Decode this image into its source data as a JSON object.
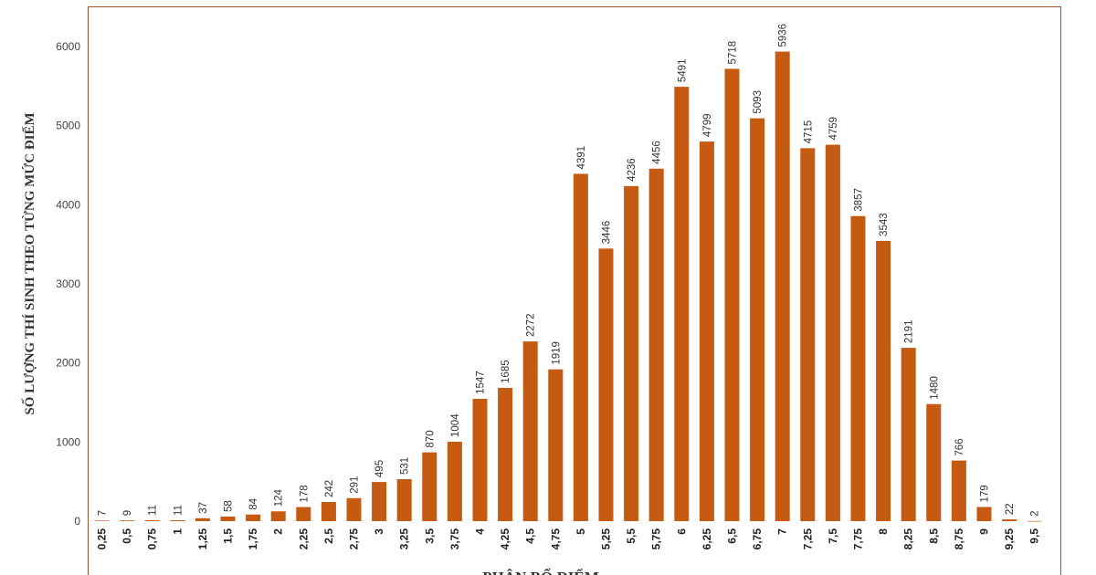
{
  "chart_data": {
    "type": "bar",
    "title": "",
    "xlabel": "PHÂN BỔ ĐIỂM",
    "ylabel": "SỐ LƯỢNG THÍ SINH THEO TỪNG MỨC ĐIỂM",
    "ylim": [
      0,
      6000
    ],
    "yticks": [
      "0",
      "1000",
      "2000",
      "3000",
      "4000",
      "5000",
      "6000"
    ],
    "grid": false,
    "bar_color": "#c55a11",
    "frame_color": "#a0522d",
    "categories": [
      "0,25",
      "0,5",
      "0,75",
      "1",
      "1,25",
      "1,5",
      "1,75",
      "2",
      "2,25",
      "2,5",
      "2,75",
      "3",
      "3,25",
      "3,5",
      "3,75",
      "4",
      "4,25",
      "4,5",
      "4,75",
      "5",
      "5,25",
      "5,5",
      "5,75",
      "6",
      "6,25",
      "6,5",
      "6,75",
      "7",
      "7,25",
      "7,5",
      "7,75",
      "8",
      "8,25",
      "8,5",
      "8,75",
      "9",
      "9,25",
      "9,5"
    ],
    "values": [
      7,
      9,
      11,
      11,
      37,
      58,
      84,
      124,
      178,
      242,
      291,
      495,
      531,
      870,
      1004,
      1547,
      1685,
      2272,
      1919,
      4391,
      3446,
      4236,
      4456,
      5491,
      4799,
      5718,
      5093,
      5936,
      4715,
      4759,
      3857,
      3543,
      2191,
      1480,
      766,
      179,
      22,
      2
    ]
  }
}
